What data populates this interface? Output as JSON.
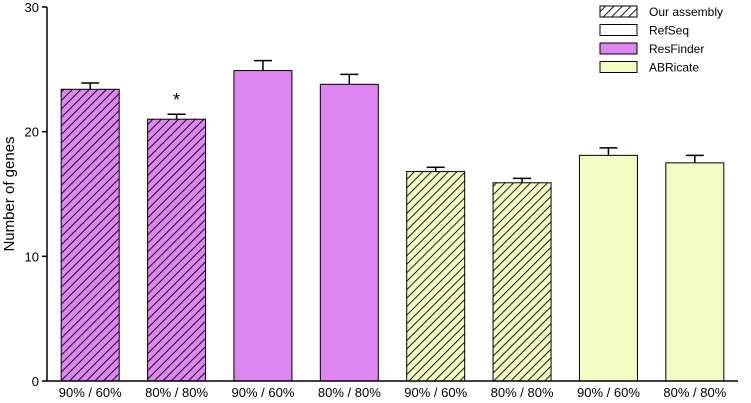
{
  "chart_data": {
    "type": "bar",
    "title": "",
    "xlabel": "",
    "ylabel": "Number of genes",
    "ylim": [
      0,
      30
    ],
    "yticks": [
      0,
      10,
      20,
      30
    ],
    "grid": false,
    "legend_position": "top-right",
    "categories": [
      "90% / 60%",
      "80% / 80%",
      "90% / 60%",
      "80% / 80%",
      "90% / 60%",
      "80% / 80%",
      "90% / 60%",
      "80% / 80%"
    ],
    "values": [
      23.4,
      21.0,
      24.9,
      23.8,
      16.8,
      15.9,
      18.1,
      17.5
    ],
    "errors": [
      0.5,
      0.4,
      0.8,
      0.8,
      0.35,
      0.35,
      0.6,
      0.6
    ],
    "bar_database": [
      "ResFinder",
      "ResFinder",
      "ResFinder",
      "ResFinder",
      "ABRicate",
      "ABRicate",
      "ABRicate",
      "ABRicate"
    ],
    "bar_hatched": [
      true,
      true,
      false,
      false,
      true,
      true,
      false,
      false
    ],
    "annotations": [
      {
        "category_index": 1,
        "text": "*"
      }
    ],
    "legend": [
      {
        "label": "Our assembly",
        "pattern": "hatched",
        "color": "#ffffff"
      },
      {
        "label": "RefSeq",
        "pattern": "solid",
        "color": "#ffffff"
      },
      {
        "label": "ResFinder",
        "pattern": "solid",
        "color": "#dd85f0"
      },
      {
        "label": "ABRicate",
        "pattern": "solid",
        "color": "#f3fcc3"
      }
    ],
    "colors": {
      "ResFinder": "#dd85f0",
      "ABRicate": "#f3fcc3"
    }
  }
}
